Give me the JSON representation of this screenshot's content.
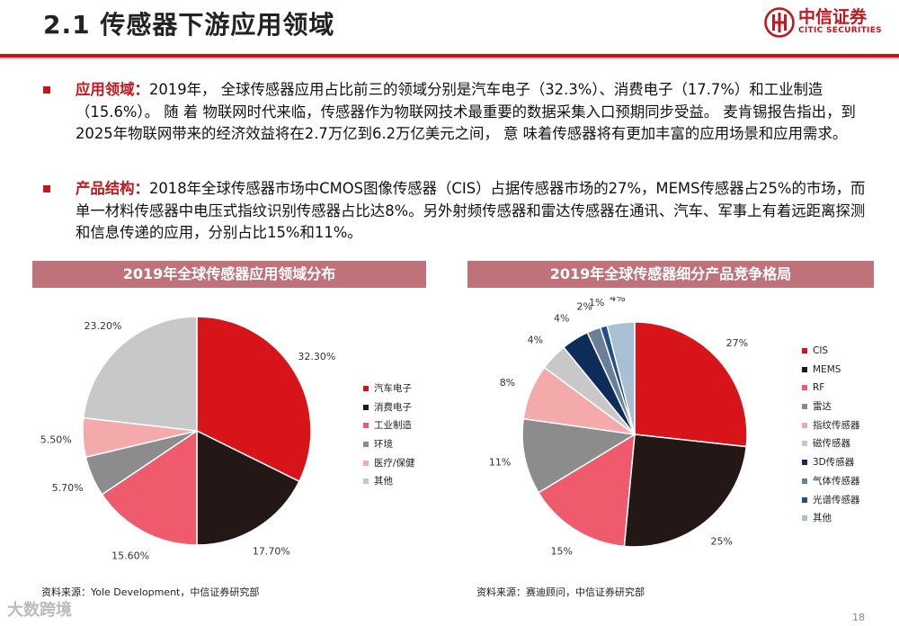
{
  "header": {
    "title": "2.1 传感器下游应用领域",
    "logo_name": "中信证券",
    "logo_sub": "CITIC SECURITIES"
  },
  "bullets": [
    {
      "keyword": "应用领域：",
      "text": "2019年， 全球传感器应用占比前三的领域分别是汽车电子（32.3%）、消费电子（17.7%）和工业制造（15.6%）。 随 着 物联网时代来临，传感器作为物联网技术最重要的数据采集入口预期同步受益。 麦肯锡报告指出，到2025年物联网带来的经济效益将在2.7万亿到6.2万亿美元之间， 意 味着传感器将有更加丰富的应用场景和应用需求。"
    },
    {
      "keyword": "产品结构：",
      "text": "2018年全球传感器市场中CMOS图像传感器（CIS）占据传感器市场的27%，MEMS传感器占25%的市场，而单一材料传感器中电压式指纹识别传感器占比达8%。另外射频传感器和雷达传感器在通讯、汽车、军事上有着远距离探测和信息传递的应用，分别占比15%和11%。"
    }
  ],
  "chart_data": [
    {
      "type": "pie",
      "title": "2019年全球传感器应用领域分布",
      "categories": [
        "汽车电子",
        "消费电子",
        "工业制造",
        "环境",
        "医疗/保健",
        "其他"
      ],
      "values": [
        32.3,
        17.7,
        15.6,
        5.7,
        5.5,
        23.2
      ],
      "labels": [
        "32.30%",
        "17.70%",
        "15.60%",
        "5.70%",
        "5.50%",
        "23.20%"
      ],
      "colors": [
        "#d7141a",
        "#231815",
        "#ef5b6c",
        "#8c8c8c",
        "#f4a9ab",
        "#c8c8c8"
      ],
      "legend": "right",
      "source": "资料来源：Yole Development，中信证券研究部"
    },
    {
      "type": "pie",
      "title": "2019年全球传感器细分产品竞争格局",
      "categories": [
        "CIS",
        "MEMS",
        "RF",
        "雷达",
        "指纹传感器",
        "磁传感器",
        "3D传感器",
        "气体传感器",
        "光谱传感器",
        "其他"
      ],
      "values": [
        27,
        25,
        15,
        11,
        8,
        4,
        4,
        2,
        1,
        4
      ],
      "labels": [
        "27%",
        "25%",
        "15%",
        "11%",
        "8%",
        "4%",
        "4%",
        "2%",
        "1%",
        "4%"
      ],
      "colors": [
        "#d7141a",
        "#231815",
        "#ef5b6c",
        "#8c8c8c",
        "#f4a9ab",
        "#c8c8c8",
        "#0d2c5a",
        "#6b7f99",
        "#1f4e8c",
        "#a9bfd3"
      ],
      "legend": "right",
      "source": "资料来源：赛迪顾问，中信证券研究部"
    }
  ],
  "footer": {
    "page_number": "18",
    "watermark": "大数跨境"
  }
}
